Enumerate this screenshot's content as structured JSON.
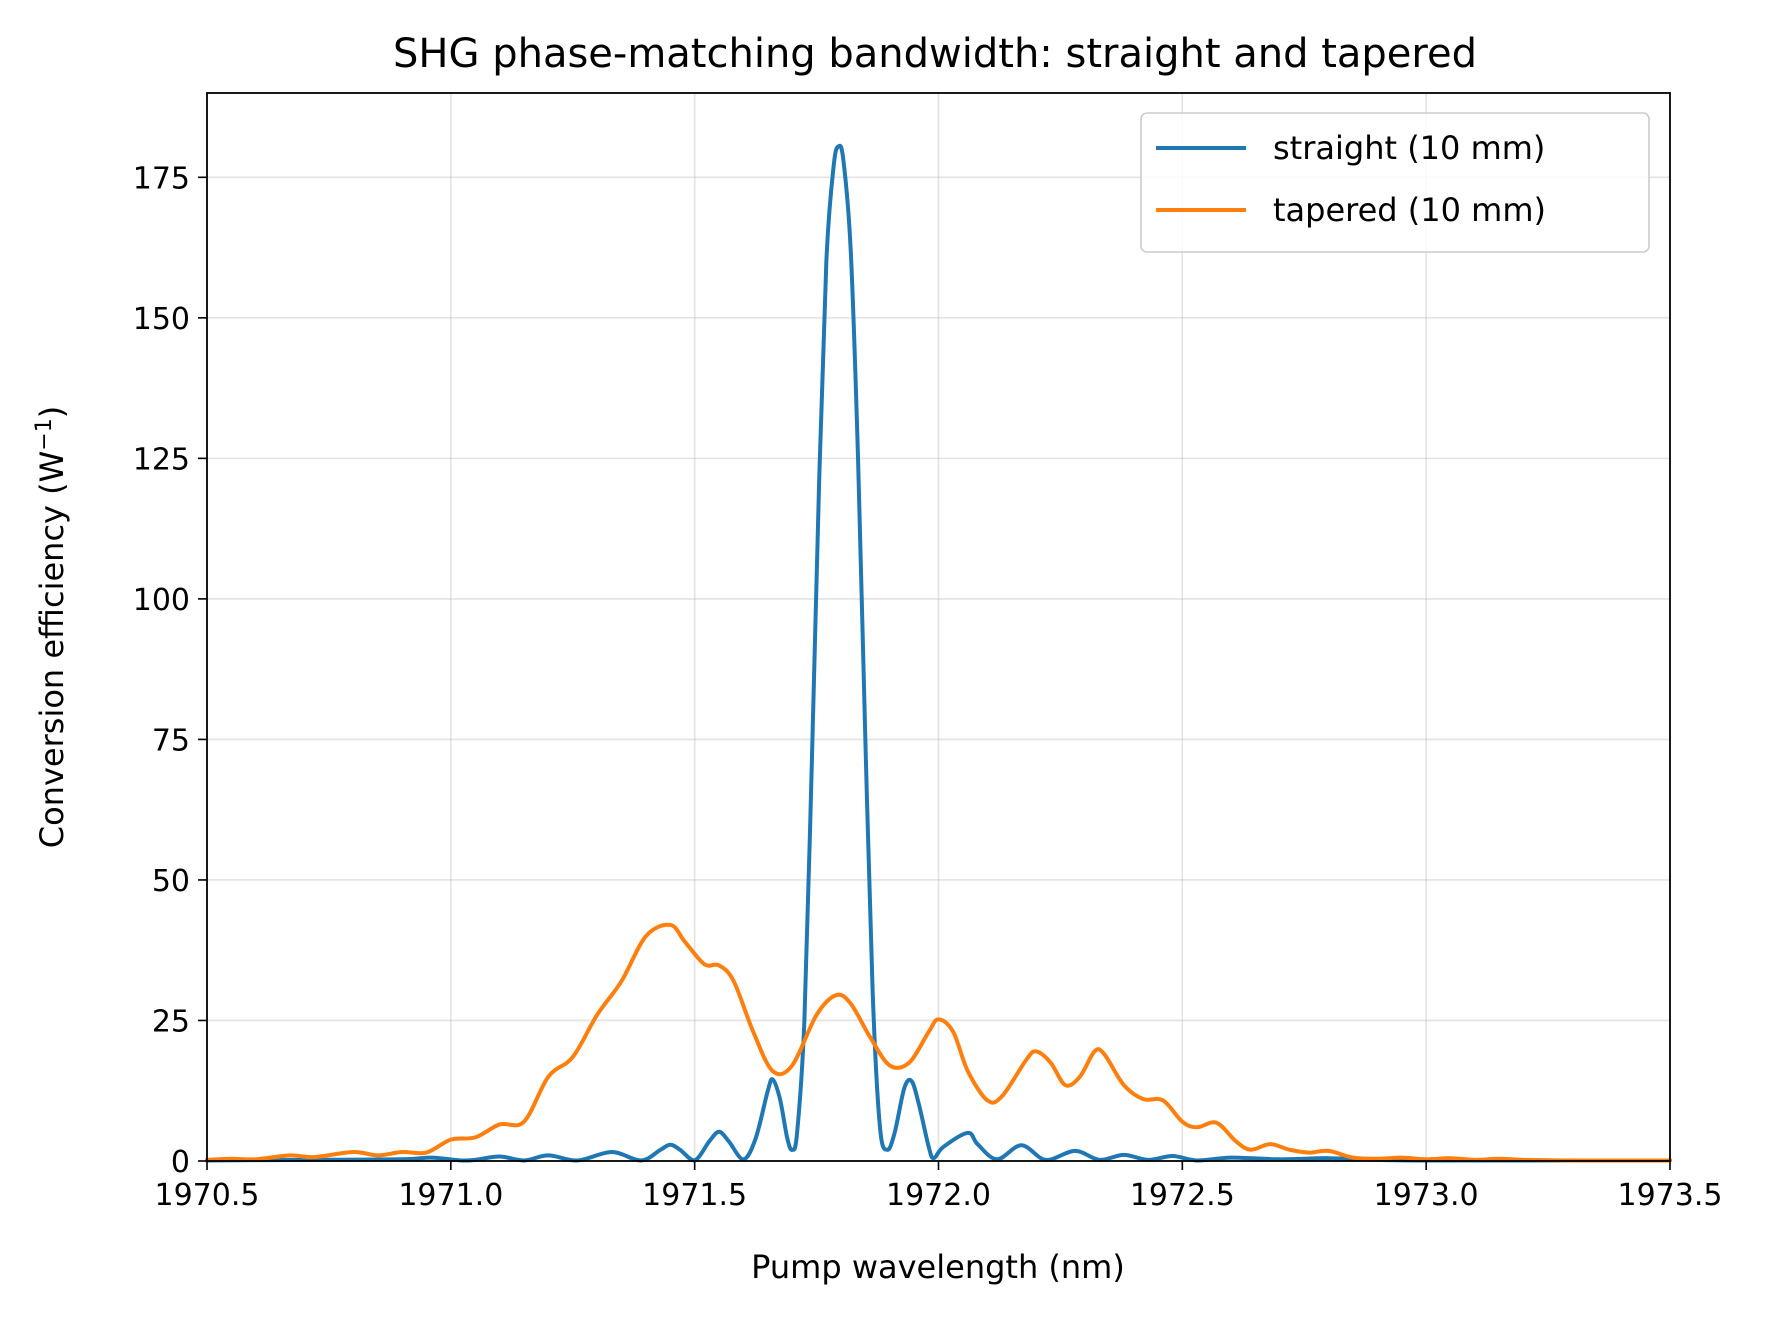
{
  "chart_data": {
    "type": "line",
    "title": "SHG phase-matching bandwidth: straight and tapered",
    "xlabel": "Pump wavelength (nm)",
    "ylabel_main": "Conversion efficiency (W",
    "ylabel_sup": "−1",
    "ylabel_end": ")",
    "xlim": [
      1970.5,
      1973.5
    ],
    "ylim": [
      0,
      190
    ],
    "xticks": [
      1970.5,
      1971.0,
      1971.5,
      1972.0,
      1972.5,
      1973.0,
      1973.5
    ],
    "xtick_labels": [
      "1970.5",
      "1971.0",
      "1971.5",
      "1972.0",
      "1972.5",
      "1973.0",
      "1973.5"
    ],
    "yticks": [
      0,
      25,
      50,
      75,
      100,
      125,
      150,
      175
    ],
    "ytick_labels": [
      "0",
      "25",
      "50",
      "75",
      "100",
      "125",
      "150",
      "175"
    ],
    "grid": true,
    "legend_position": "top-right",
    "series": [
      {
        "name": "straight (10 mm)",
        "color": "#1f77b4",
        "points": [
          [
            1970.5,
            0.1
          ],
          [
            1970.7,
            0.2
          ],
          [
            1970.9,
            0.3
          ],
          [
            1970.96,
            0.6
          ],
          [
            1971.02,
            0.1
          ],
          [
            1971.05,
            0.2
          ],
          [
            1971.1,
            0.8
          ],
          [
            1971.15,
            0.1
          ],
          [
            1971.2,
            1.0
          ],
          [
            1971.26,
            0.1
          ],
          [
            1971.33,
            1.6
          ],
          [
            1971.39,
            0.1
          ],
          [
            1971.43,
            2.0
          ],
          [
            1971.45,
            2.9
          ],
          [
            1971.47,
            2.0
          ],
          [
            1971.5,
            0.1
          ],
          [
            1971.53,
            3.5
          ],
          [
            1971.55,
            5.2
          ],
          [
            1971.57,
            3.5
          ],
          [
            1971.6,
            0.3
          ],
          [
            1971.625,
            4.0
          ],
          [
            1971.65,
            12.5
          ],
          [
            1971.66,
            14.5
          ],
          [
            1971.675,
            11.0
          ],
          [
            1971.69,
            4.0
          ],
          [
            1971.7,
            2.0
          ],
          [
            1971.71,
            5.0
          ],
          [
            1971.725,
            25.0
          ],
          [
            1971.74,
            70.0
          ],
          [
            1971.755,
            120.0
          ],
          [
            1971.77,
            160.0
          ],
          [
            1971.785,
            177.0
          ],
          [
            1971.795,
            180.5
          ],
          [
            1971.805,
            178.0
          ],
          [
            1971.82,
            162.0
          ],
          [
            1971.835,
            125.0
          ],
          [
            1971.85,
            75.0
          ],
          [
            1971.865,
            30.0
          ],
          [
            1971.88,
            6.0
          ],
          [
            1971.895,
            2.0
          ],
          [
            1971.91,
            5.0
          ],
          [
            1971.93,
            13.0
          ],
          [
            1971.945,
            14.2
          ],
          [
            1971.96,
            10.0
          ],
          [
            1971.98,
            2.5
          ],
          [
            1971.99,
            0.5
          ],
          [
            1972.01,
            2.5
          ],
          [
            1972.06,
            5.0
          ],
          [
            1972.08,
            3.0
          ],
          [
            1972.12,
            0.3
          ],
          [
            1972.17,
            2.8
          ],
          [
            1972.22,
            0.2
          ],
          [
            1972.28,
            1.8
          ],
          [
            1972.33,
            0.2
          ],
          [
            1972.38,
            1.1
          ],
          [
            1972.43,
            0.2
          ],
          [
            1972.48,
            0.9
          ],
          [
            1972.53,
            0.1
          ],
          [
            1972.6,
            0.6
          ],
          [
            1972.7,
            0.3
          ],
          [
            1972.8,
            0.5
          ],
          [
            1972.9,
            0.2
          ],
          [
            1973.0,
            0.1
          ],
          [
            1973.2,
            0.1
          ],
          [
            1973.5,
            0.1
          ]
        ]
      },
      {
        "name": "tapered (10 mm)",
        "color": "#ff7f0e",
        "points": [
          [
            1970.5,
            0.2
          ],
          [
            1970.55,
            0.4
          ],
          [
            1970.6,
            0.3
          ],
          [
            1970.67,
            1.0
          ],
          [
            1970.72,
            0.7
          ],
          [
            1970.8,
            1.6
          ],
          [
            1970.85,
            1.0
          ],
          [
            1970.9,
            1.6
          ],
          [
            1970.95,
            1.5
          ],
          [
            1971.0,
            3.8
          ],
          [
            1971.05,
            4.2
          ],
          [
            1971.1,
            6.5
          ],
          [
            1971.15,
            7.0
          ],
          [
            1971.2,
            15.0
          ],
          [
            1971.25,
            18.5
          ],
          [
            1971.3,
            26.0
          ],
          [
            1971.35,
            32.0
          ],
          [
            1971.4,
            40.0
          ],
          [
            1971.45,
            42.0
          ],
          [
            1971.48,
            39.0
          ],
          [
            1971.52,
            35.0
          ],
          [
            1971.55,
            34.8
          ],
          [
            1971.58,
            32.0
          ],
          [
            1971.62,
            23.0
          ],
          [
            1971.66,
            16.0
          ],
          [
            1971.7,
            17.0
          ],
          [
            1971.75,
            26.0
          ],
          [
            1971.79,
            29.5
          ],
          [
            1971.82,
            28.0
          ],
          [
            1971.86,
            22.0
          ],
          [
            1971.9,
            17.0
          ],
          [
            1971.94,
            17.5
          ],
          [
            1971.98,
            23.0
          ],
          [
            1972.0,
            25.2
          ],
          [
            1972.03,
            23.0
          ],
          [
            1972.06,
            16.0
          ],
          [
            1972.1,
            10.8
          ],
          [
            1972.13,
            11.5
          ],
          [
            1972.18,
            18.0
          ],
          [
            1972.2,
            19.5
          ],
          [
            1972.23,
            17.5
          ],
          [
            1972.26,
            13.5
          ],
          [
            1972.29,
            15.0
          ],
          [
            1972.32,
            19.5
          ],
          [
            1972.34,
            19.0
          ],
          [
            1972.38,
            13.5
          ],
          [
            1972.42,
            11.0
          ],
          [
            1972.46,
            10.8
          ],
          [
            1972.5,
            7.0
          ],
          [
            1972.53,
            6.0
          ],
          [
            1972.57,
            6.8
          ],
          [
            1972.61,
            3.5
          ],
          [
            1972.64,
            2.0
          ],
          [
            1972.68,
            3.0
          ],
          [
            1972.72,
            2.0
          ],
          [
            1972.76,
            1.5
          ],
          [
            1972.8,
            1.8
          ],
          [
            1972.85,
            0.6
          ],
          [
            1972.9,
            0.4
          ],
          [
            1972.95,
            0.6
          ],
          [
            1973.0,
            0.3
          ],
          [
            1973.05,
            0.5
          ],
          [
            1973.1,
            0.2
          ],
          [
            1973.15,
            0.4
          ],
          [
            1973.2,
            0.2
          ],
          [
            1973.3,
            0.1
          ],
          [
            1973.4,
            0.1
          ],
          [
            1973.5,
            0.1
          ]
        ]
      }
    ]
  }
}
